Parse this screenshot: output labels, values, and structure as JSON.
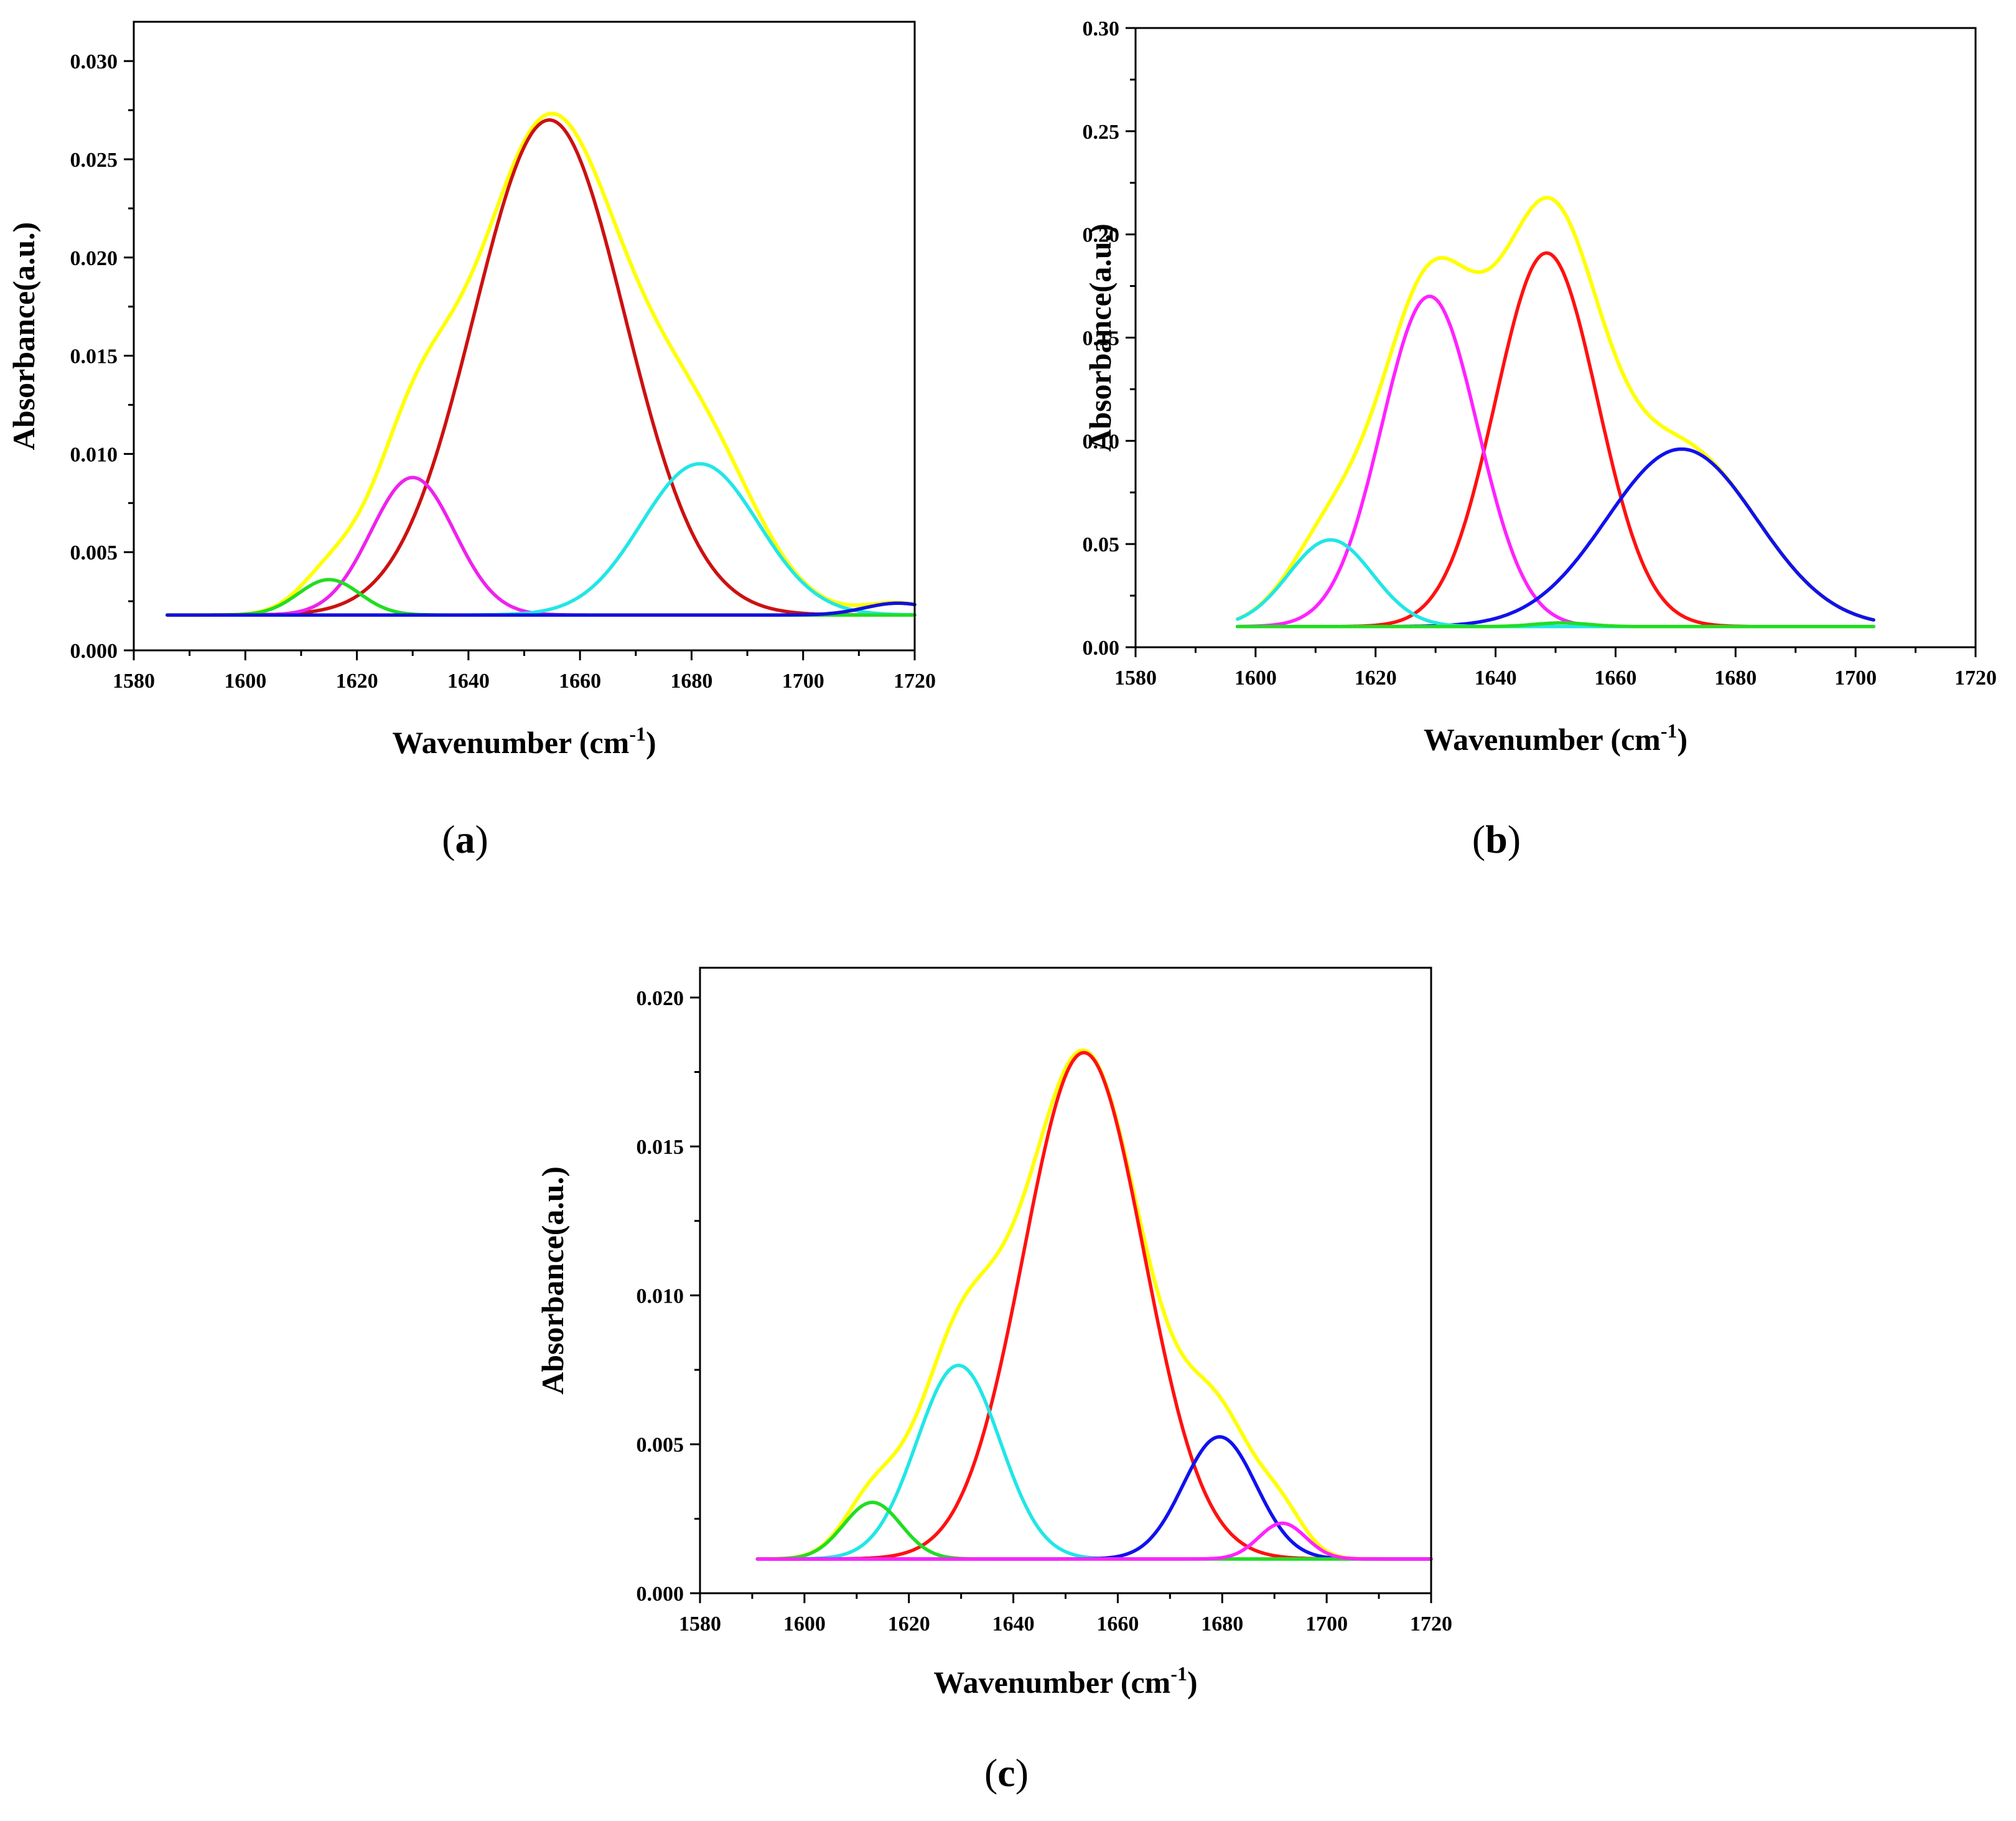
{
  "chart_data": [
    {
      "panel_label": "(a)",
      "panel_letter": "a",
      "type": "line",
      "xlabel": "Wavenumber (cm",
      "xlabel_sup": "-1",
      "xlabel_close": ")",
      "ylabel": "Absorbance(a.u.)",
      "xlim": [
        1580,
        1720
      ],
      "ylim": [
        0,
        0.032
      ],
      "xticks": [
        1580,
        1600,
        1620,
        1640,
        1660,
        1680,
        1700,
        1720
      ],
      "yticks": [
        0.0,
        0.005,
        0.01,
        0.015,
        0.02,
        0.025,
        0.03
      ],
      "yticklabels": [
        "0.000",
        "0.005",
        "0.010",
        "0.015",
        "0.020",
        "0.025",
        "0.030"
      ],
      "baseline": 0.0018,
      "x_start": 1586,
      "x_end": 1720,
      "series": [
        {
          "name": "yellow",
          "color": "#ffff00",
          "kind": "envelope"
        },
        {
          "name": "red",
          "color": "#cc1111",
          "center": 1654.5,
          "sigma": 13.5,
          "height": 0.0252
        },
        {
          "name": "magenta",
          "color": "#ee22ee",
          "center": 1630,
          "sigma": 7.5,
          "height": 0.007
        },
        {
          "name": "cyan",
          "color": "#22e6e6",
          "center": 1681.5,
          "sigma": 10.5,
          "height": 0.0077
        },
        {
          "name": "green",
          "color": "#22dd22",
          "center": 1615,
          "sigma": 5.5,
          "height": 0.0018
        },
        {
          "name": "blue",
          "color": "#1111dd",
          "center": 1717,
          "sigma": 6,
          "height": 0.0006
        }
      ]
    },
    {
      "panel_label": "(b)",
      "panel_letter": "b",
      "type": "line",
      "xlabel": "Wavenumber (cm",
      "xlabel_sup": "-1",
      "xlabel_close": ")",
      "ylabel": "Absorbance(a.u.)",
      "xlim": [
        1580,
        1720
      ],
      "ylim": [
        0,
        0.3
      ],
      "xticks": [
        1580,
        1600,
        1620,
        1640,
        1660,
        1680,
        1700,
        1720
      ],
      "yticks": [
        0.0,
        0.05,
        0.1,
        0.15,
        0.2,
        0.25,
        0.3
      ],
      "yticklabels": [
        "0.00",
        "0.05",
        "0.10",
        "0.15",
        "0.20",
        "0.25",
        "0.30"
      ],
      "baseline": 0.01,
      "x_start": 1597,
      "x_end": 1703,
      "series": [
        {
          "name": "yellow",
          "color": "#ffff00",
          "kind": "envelope"
        },
        {
          "name": "red",
          "color": "#ff1111",
          "center": 1648.5,
          "sigma": 8.5,
          "height": 0.181
        },
        {
          "name": "magenta",
          "color": "#ff22ff",
          "center": 1629,
          "sigma": 8,
          "height": 0.16
        },
        {
          "name": "blue",
          "color": "#1111ee",
          "center": 1671,
          "sigma": 12.5,
          "height": 0.086
        },
        {
          "name": "cyan",
          "color": "#22e6e6",
          "center": 1612.5,
          "sigma": 7,
          "height": 0.042
        },
        {
          "name": "green",
          "color": "#22dd22",
          "center": 1651,
          "sigma": 4.5,
          "height": 0.0018
        }
      ]
    },
    {
      "panel_label": "(c)",
      "panel_letter": "c",
      "type": "line",
      "xlabel": "Wavenumber (cm",
      "xlabel_sup": "-1",
      "xlabel_close": ")",
      "ylabel": "Absorbance(a.u.)",
      "xlim": [
        1580,
        1720
      ],
      "ylim": [
        0,
        0.021
      ],
      "xticks": [
        1580,
        1600,
        1620,
        1640,
        1660,
        1680,
        1700,
        1720
      ],
      "yticks": [
        0.0,
        0.005,
        0.01,
        0.015,
        0.02
      ],
      "yticklabels": [
        "0.000",
        "0.005",
        "0.010",
        "0.015",
        "0.020"
      ],
      "baseline": 0.00115,
      "x_start": 1591,
      "x_end": 1720,
      "series": [
        {
          "name": "yellow",
          "color": "#ffff00",
          "kind": "envelope"
        },
        {
          "name": "red",
          "color": "#ff1111",
          "center": 1653.5,
          "sigma": 11.5,
          "height": 0.017
        },
        {
          "name": "cyan",
          "color": "#22e6e6",
          "center": 1629.5,
          "sigma": 8,
          "height": 0.0065
        },
        {
          "name": "blue",
          "color": "#1111ee",
          "center": 1679.5,
          "sigma": 7,
          "height": 0.0041
        },
        {
          "name": "green",
          "color": "#22dd22",
          "center": 1613,
          "sigma": 5.5,
          "height": 0.0019
        },
        {
          "name": "magenta",
          "color": "#ff22ff",
          "center": 1691.5,
          "sigma": 4.5,
          "height": 0.0012
        }
      ]
    }
  ]
}
